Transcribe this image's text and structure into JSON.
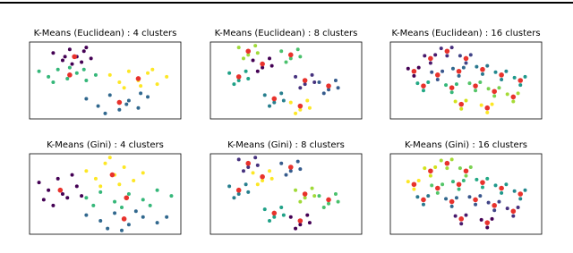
{
  "chart_data": [
    {
      "type": "scatter",
      "title": "K-Means (Euclidean) : 4 clusters",
      "xlim": [
        -3.2,
        3.2
      ],
      "ylim": [
        -2.1,
        2.1
      ],
      "series": [
        {
          "color": "#440154",
          "x": [
            -2.2,
            -1.8,
            -1.5,
            -1.2,
            -0.9,
            -0.6,
            -1.4,
            -1.0,
            -1.7,
            -0.8
          ],
          "values": [
            1.5,
            1.1,
            1.7,
            1.3,
            1.6,
            1.2,
            0.9,
            1.0,
            1.3,
            1.8
          ]
        },
        {
          "color": "#35b779",
          "x": [
            -2.8,
            -2.4,
            -2.0,
            -1.6,
            -1.2,
            -0.8,
            -0.4,
            -2.2,
            -1.5,
            -0.9
          ],
          "values": [
            0.5,
            0.2,
            0.6,
            0.1,
            0.4,
            0.0,
            0.3,
            -0.1,
            0.7,
            0.6
          ]
        },
        {
          "color": "#fde725",
          "x": [
            0.2,
            0.6,
            1.0,
            1.4,
            1.8,
            2.2,
            2.6,
            0.8,
            1.5,
            2.0
          ],
          "values": [
            0.3,
            -0.1,
            0.5,
            0.0,
            0.4,
            -0.2,
            0.2,
            -0.4,
            -0.3,
            0.6
          ]
        },
        {
          "color": "#31688e",
          "x": [
            -0.8,
            -0.3,
            0.2,
            0.6,
            1.0,
            1.4,
            1.8,
            0.0,
            0.9,
            1.5
          ],
          "values": [
            -1.0,
            -1.4,
            -0.8,
            -1.6,
            -1.1,
            -1.5,
            -0.9,
            -1.8,
            -1.3,
            -0.7
          ]
        },
        {
          "color": "#e8322c",
          "x": [
            -1.3,
            -1.5,
            1.4,
            0.6
          ],
          "values": [
            1.3,
            0.3,
            0.1,
            -1.2
          ]
        }
      ]
    },
    {
      "type": "scatter",
      "title": "K-Means (Euclidean) : 8 clusters",
      "xlim": [
        -3.2,
        3.2
      ],
      "ylim": [
        -2.1,
        2.1
      ],
      "series": [
        {
          "color": "#440154",
          "x": [
            -1.4,
            -0.7,
            -1.0,
            -1.2,
            -0.6
          ],
          "values": [
            1.1,
            1.2,
            0.7,
            0.5,
            0.8
          ]
        },
        {
          "color": "#46327e",
          "x": [
            0.4,
            1.1,
            0.8,
            0.6,
            1.2
          ],
          "values": [
            0.2,
            0.3,
            -0.2,
            -0.4,
            -0.1
          ]
        },
        {
          "color": "#365c8d",
          "x": [
            1.4,
            2.1,
            1.8,
            1.6,
            2.2
          ],
          "values": [
            -0.1,
            0.0,
            -0.5,
            -0.7,
            -0.4
          ]
        },
        {
          "color": "#277f8e",
          "x": [
            -0.9,
            -0.2,
            -0.5,
            -0.7,
            -0.1
          ],
          "values": [
            -0.8,
            -0.7,
            -1.2,
            -1.4,
            -1.1
          ]
        },
        {
          "color": "#1fa187",
          "x": [
            -2.4,
            -1.7,
            -2.0,
            -2.2,
            -1.6
          ],
          "values": [
            0.4,
            0.5,
            0.0,
            -0.2,
            0.1
          ]
        },
        {
          "color": "#4ac16d",
          "x": [
            -0.2,
            0.5,
            0.2,
            0.0,
            0.6
          ],
          "values": [
            1.6,
            1.7,
            1.2,
            1.0,
            1.3
          ]
        },
        {
          "color": "#a0da39",
          "x": [
            -2.0,
            -1.3,
            -1.6,
            -1.8,
            -1.2
          ],
          "values": [
            1.8,
            1.9,
            1.4,
            1.2,
            1.5
          ]
        },
        {
          "color": "#fde725",
          "x": [
            0.2,
            0.9,
            0.6,
            0.4,
            1.0
          ],
          "values": [
            -1.2,
            -1.1,
            -1.6,
            -1.8,
            -1.5
          ]
        },
        {
          "color": "#e8322c",
          "x": [
            -1.0,
            0.8,
            1.8,
            -0.5,
            -2.0,
            0.2,
            -1.6,
            0.6
          ],
          "values": [
            0.9,
            0.0,
            -0.3,
            -1.0,
            0.2,
            1.4,
            1.6,
            -1.4
          ]
        }
      ]
    },
    {
      "type": "scatter",
      "title": "K-Means (Euclidean) : 16 clusters",
      "xlim": [
        -3.2,
        3.2
      ],
      "ylim": [
        -2.1,
        2.1
      ],
      "series": [
        {
          "color": "#440154",
          "x": [
            -2.45,
            -2.0,
            -2.2
          ],
          "values": [
            0.65,
            0.7,
            0.25
          ]
        },
        {
          "color": "#481a6c",
          "x": [
            -1.75,
            -1.3,
            -1.5
          ],
          "values": [
            1.35,
            1.4,
            0.95
          ]
        },
        {
          "color": "#472f7d",
          "x": [
            -1.05,
            -0.6,
            -0.8
          ],
          "values": [
            1.75,
            1.8,
            1.35
          ]
        },
        {
          "color": "#414487",
          "x": [
            -0.25,
            0.2,
            0.0
          ],
          "values": [
            1.35,
            1.4,
            0.95
          ]
        },
        {
          "color": "#39568c",
          "x": [
            -1.45,
            -1.0,
            -1.2
          ],
          "values": [
            0.45,
            0.5,
            0.05
          ]
        },
        {
          "color": "#31688e",
          "x": [
            -0.55,
            -0.1,
            -0.3
          ],
          "values": [
            0.65,
            0.7,
            0.25
          ]
        },
        {
          "color": "#2a788e",
          "x": [
            0.45,
            0.9,
            0.7
          ],
          "values": [
            0.75,
            0.8,
            0.35
          ]
        },
        {
          "color": "#23888e",
          "x": [
            1.25,
            1.7,
            1.5
          ],
          "values": [
            0.45,
            0.5,
            0.05
          ]
        },
        {
          "color": "#1f988b",
          "x": [
            2.05,
            2.5,
            2.3
          ],
          "values": [
            0.15,
            0.2,
            -0.25
          ]
        },
        {
          "color": "#22a884",
          "x": [
            -2.05,
            -1.6,
            -1.8
          ],
          "values": [
            -0.15,
            -0.1,
            -0.55
          ]
        },
        {
          "color": "#35b779",
          "x": [
            -0.85,
            -0.4,
            -0.6
          ],
          "values": [
            -0.25,
            -0.2,
            -0.65
          ]
        },
        {
          "color": "#54c568",
          "x": [
            0.15,
            0.6,
            0.4
          ],
          "values": [
            -0.15,
            -0.1,
            -0.55
          ]
        },
        {
          "color": "#7ad151",
          "x": [
            0.95,
            1.4,
            1.2
          ],
          "values": [
            -0.45,
            -0.4,
            -0.85
          ]
        },
        {
          "color": "#a5db36",
          "x": [
            1.75,
            2.2,
            2.0
          ],
          "values": [
            -0.75,
            -0.7,
            -1.15
          ]
        },
        {
          "color": "#d2e21b",
          "x": [
            -0.45,
            0.0,
            -0.2
          ],
          "values": [
            -1.15,
            -1.1,
            -1.55
          ]
        },
        {
          "color": "#fde725",
          "x": [
            0.65,
            1.1,
            0.9
          ],
          "values": [
            -1.35,
            -1.3,
            -1.75
          ]
        },
        {
          "color": "#e8322c",
          "x": [
            -2.2,
            -1.5,
            -0.8,
            0.0,
            -1.2,
            -0.3,
            0.7,
            1.5,
            2.3,
            -1.8,
            -0.6,
            0.4,
            1.2,
            2.0,
            -0.2,
            0.9
          ],
          "values": [
            0.5,
            1.2,
            1.6,
            1.2,
            0.3,
            0.5,
            0.6,
            0.3,
            0.0,
            -0.3,
            -0.4,
            -0.3,
            -0.6,
            -0.9,
            -1.3,
            -1.5
          ]
        }
      ]
    },
    {
      "type": "scatter",
      "title": "K-Means (Gini) : 4 clusters",
      "xlim": [
        -3.2,
        3.2
      ],
      "ylim": [
        -2.1,
        2.1
      ],
      "series": [
        {
          "color": "#440154",
          "x": [
            -2.8,
            -2.4,
            -2.0,
            -1.6,
            -1.2,
            -2.2,
            -1.8,
            -1.4,
            -2.6,
            -1.0
          ],
          "values": [
            0.6,
            0.2,
            0.8,
            -0.2,
            0.4,
            -0.6,
            0.0,
            1.0,
            -0.3,
            -0.1
          ]
        },
        {
          "color": "#fde725",
          "x": [
            -0.8,
            -0.4,
            0.0,
            0.4,
            0.8,
            1.2,
            -0.2,
            0.6,
            1.6,
            0.2
          ],
          "values": [
            1.2,
            0.8,
            1.6,
            1.0,
            1.4,
            0.7,
            0.4,
            0.5,
            1.1,
            1.9
          ]
        },
        {
          "color": "#35b779",
          "x": [
            -0.8,
            -0.2,
            0.4,
            1.0,
            1.6,
            2.2,
            2.8,
            0.7,
            1.9,
            -0.5
          ],
          "values": [
            -0.2,
            0.1,
            -0.4,
            0.0,
            -0.3,
            0.2,
            -0.1,
            -0.7,
            -0.6,
            -0.6
          ]
        },
        {
          "color": "#31688e",
          "x": [
            -0.8,
            -0.2,
            0.4,
            1.0,
            1.6,
            2.2,
            0.1,
            1.3,
            2.6,
            0.7
          ],
          "values": [
            -1.1,
            -1.4,
            -1.0,
            -1.6,
            -1.2,
            -1.5,
            -1.8,
            -0.9,
            -1.2,
            -1.9
          ]
        },
        {
          "color": "#e8322c",
          "x": [
            -1.9,
            0.3,
            0.9,
            0.8
          ],
          "values": [
            0.2,
            1.0,
            -0.2,
            -1.3
          ]
        }
      ]
    },
    {
      "type": "scatter",
      "title": "K-Means (Gini) : 8 clusters",
      "xlim": [
        -3.2,
        3.2
      ],
      "ylim": [
        -2.1,
        2.1
      ],
      "series": [
        {
          "color": "#fde725",
          "x": [
            -1.4,
            -0.7,
            -1.0,
            -1.2,
            -0.6
          ],
          "values": [
            1.1,
            1.2,
            0.7,
            0.5,
            0.8
          ]
        },
        {
          "color": "#a0da39",
          "x": [
            0.4,
            1.1,
            0.8,
            0.6,
            1.2
          ],
          "values": [
            0.2,
            0.3,
            -0.2,
            -0.4,
            -0.1
          ]
        },
        {
          "color": "#4ac16d",
          "x": [
            1.4,
            2.1,
            1.8,
            1.6,
            2.2
          ],
          "values": [
            -0.1,
            0.0,
            -0.5,
            -0.7,
            -0.4
          ]
        },
        {
          "color": "#1fa187",
          "x": [
            -0.9,
            -0.2,
            -0.5,
            -0.7,
            -0.1
          ],
          "values": [
            -0.8,
            -0.7,
            -1.2,
            -1.4,
            -1.1
          ]
        },
        {
          "color": "#277f8e",
          "x": [
            -2.4,
            -1.7,
            -2.0,
            -2.2,
            -1.6
          ],
          "values": [
            0.4,
            0.5,
            0.0,
            -0.2,
            0.1
          ]
        },
        {
          "color": "#365c8d",
          "x": [
            -0.2,
            0.5,
            0.2,
            0.0,
            0.6
          ],
          "values": [
            1.6,
            1.7,
            1.2,
            1.0,
            1.3
          ]
        },
        {
          "color": "#46327e",
          "x": [
            -2.0,
            -1.3,
            -1.6,
            -1.8,
            -1.2
          ],
          "values": [
            1.8,
            1.9,
            1.4,
            1.2,
            1.5
          ]
        },
        {
          "color": "#440154",
          "x": [
            0.2,
            0.9,
            0.6,
            0.4,
            1.0
          ],
          "values": [
            -1.2,
            -1.1,
            -1.6,
            -1.8,
            -1.5
          ]
        },
        {
          "color": "#e8322c",
          "x": [
            -1.0,
            0.8,
            1.8,
            -0.5,
            -2.0,
            0.2,
            -1.6,
            0.6
          ],
          "values": [
            0.9,
            0.0,
            -0.3,
            -1.0,
            0.2,
            1.4,
            1.6,
            -1.4
          ]
        }
      ]
    },
    {
      "type": "scatter",
      "title": "K-Means (Gini) : 16 clusters",
      "xlim": [
        -3.2,
        3.2
      ],
      "ylim": [
        -2.1,
        2.1
      ],
      "series": [
        {
          "color": "#fde725",
          "x": [
            -2.45,
            -2.0,
            -2.2
          ],
          "values": [
            0.65,
            0.7,
            0.25
          ]
        },
        {
          "color": "#d2e21b",
          "x": [
            -1.75,
            -1.3,
            -1.5
          ],
          "values": [
            1.35,
            1.4,
            0.95
          ]
        },
        {
          "color": "#a5db36",
          "x": [
            -1.05,
            -0.6,
            -0.8
          ],
          "values": [
            1.75,
            1.8,
            1.35
          ]
        },
        {
          "color": "#7ad151",
          "x": [
            -0.25,
            0.2,
            0.0
          ],
          "values": [
            1.35,
            1.4,
            0.95
          ]
        },
        {
          "color": "#54c568",
          "x": [
            -1.45,
            -1.0,
            -1.2
          ],
          "values": [
            0.45,
            0.5,
            0.05
          ]
        },
        {
          "color": "#35b779",
          "x": [
            -0.55,
            -0.1,
            -0.3
          ],
          "values": [
            0.65,
            0.7,
            0.25
          ]
        },
        {
          "color": "#22a884",
          "x": [
            0.45,
            0.9,
            0.7
          ],
          "values": [
            0.75,
            0.8,
            0.35
          ]
        },
        {
          "color": "#1f988b",
          "x": [
            1.25,
            1.7,
            1.5
          ],
          "values": [
            0.45,
            0.5,
            0.05
          ]
        },
        {
          "color": "#23888e",
          "x": [
            2.05,
            2.5,
            2.3
          ],
          "values": [
            0.15,
            0.2,
            -0.25
          ]
        },
        {
          "color": "#2a788e",
          "x": [
            -2.05,
            -1.6,
            -1.8
          ],
          "values": [
            -0.15,
            -0.1,
            -0.55
          ]
        },
        {
          "color": "#31688e",
          "x": [
            -0.85,
            -0.4,
            -0.6
          ],
          "values": [
            -0.25,
            -0.2,
            -0.65
          ]
        },
        {
          "color": "#39568c",
          "x": [
            0.15,
            0.6,
            0.4
          ],
          "values": [
            -0.15,
            -0.1,
            -0.55
          ]
        },
        {
          "color": "#414487",
          "x": [
            0.95,
            1.4,
            1.2
          ],
          "values": [
            -0.45,
            -0.4,
            -0.85
          ]
        },
        {
          "color": "#472f7d",
          "x": [
            1.75,
            2.2,
            2.0
          ],
          "values": [
            -0.75,
            -0.7,
            -1.15
          ]
        },
        {
          "color": "#481a6c",
          "x": [
            -0.45,
            0.0,
            -0.2
          ],
          "values": [
            -1.15,
            -1.1,
            -1.55
          ]
        },
        {
          "color": "#440154",
          "x": [
            0.65,
            1.1,
            0.9
          ],
          "values": [
            -1.35,
            -1.3,
            -1.75
          ]
        },
        {
          "color": "#e8322c",
          "x": [
            -2.2,
            -1.5,
            -0.8,
            0.0,
            -1.2,
            -0.3,
            0.7,
            1.5,
            2.3,
            -1.8,
            -0.6,
            0.4,
            1.2,
            2.0,
            -0.2,
            0.9
          ],
          "values": [
            0.5,
            1.2,
            1.6,
            1.2,
            0.3,
            0.5,
            0.6,
            0.3,
            0.0,
            -0.3,
            -0.4,
            -0.3,
            -0.6,
            -0.9,
            -1.3,
            -1.5
          ]
        }
      ]
    }
  ]
}
